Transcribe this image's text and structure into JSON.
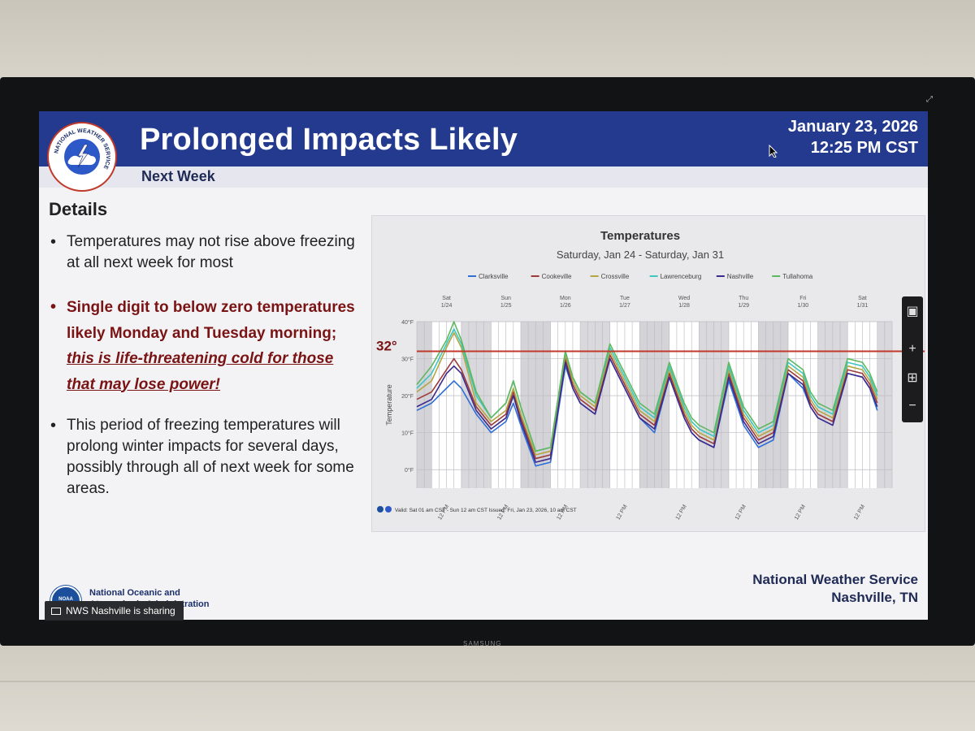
{
  "slide": {
    "title": "Prolonged Impacts Likely",
    "subtitle": "Next Week",
    "date": "January 23, 2026",
    "time": "12:25 PM CST",
    "details_heading": "Details",
    "bullet1": "Temperatures may not rise above freezing at all next week for most",
    "bullet2_main": "Single digit to below zero temperatures likely Monday and Tuesday morning; ",
    "bullet2_emph": "this is life-threatening cold for those that may lose power!",
    "bullet3": "This period of freezing temperatures will prolong winter impacts for several days, possibly through all of next week for some areas.",
    "footer_agency_line1": "National Oceanic and",
    "footer_agency_line2": "Atmospheric Administration",
    "footer_office_line1": "National Weather Service",
    "footer_office_line2": "Nashville, TN",
    "logo_label": "NATIONAL WEATHER SERVICE",
    "noaa_logo_label": "NOAA"
  },
  "screen_share": {
    "label": "NWS Nashville is sharing"
  },
  "tv": {
    "brand": "SAMSUNG"
  },
  "side_panel": {
    "zoom_in": "+",
    "zoom_out": "−",
    "fit": "⊞",
    "present": "▣"
  },
  "colors": {
    "banner": "#233a8f",
    "alert": "#7a1414",
    "freeze_line": "#c0392b"
  },
  "chart_data": {
    "type": "line",
    "title": "Temperatures",
    "subtitle": "Saturday, Jan 24 - Saturday, Jan 31",
    "ylabel": "Temperature",
    "ylim": [
      -5,
      40
    ],
    "yticks": [
      0,
      10,
      20,
      30,
      40
    ],
    "ytick_labels": [
      "0°F",
      "10°F",
      "20°F",
      "30°F",
      "40°F"
    ],
    "annotation": "32°",
    "freeze_line": 32,
    "days": [
      {
        "dow": "Sat",
        "date": "1/24"
      },
      {
        "dow": "Sun",
        "date": "1/25"
      },
      {
        "dow": "Mon",
        "date": "1/26"
      },
      {
        "dow": "Tue",
        "date": "1/27"
      },
      {
        "dow": "Wed",
        "date": "1/28"
      },
      {
        "dow": "Thu",
        "date": "1/29"
      },
      {
        "dow": "Fri",
        "date": "1/30"
      },
      {
        "dow": "Sat",
        "date": "1/31"
      }
    ],
    "xtick_label": "12 PM",
    "x_hours": [
      0,
      6,
      12,
      15,
      18,
      24,
      30,
      36,
      39,
      42,
      48,
      54,
      60,
      63,
      66,
      72,
      78,
      84,
      87,
      90,
      96,
      102,
      108,
      111,
      114,
      120,
      126,
      132,
      135,
      138,
      144,
      150,
      156,
      159,
      162,
      168,
      174,
      180,
      183,
      186
    ],
    "series": [
      {
        "name": "Clarksville",
        "color": "#2f6fd6",
        "values": [
          16,
          18,
          22,
          24,
          22,
          15,
          10,
          13,
          18,
          12,
          1,
          2,
          28,
          22,
          18,
          15,
          30,
          22,
          18,
          14,
          10,
          25,
          14,
          10,
          8,
          6,
          24,
          12,
          9,
          6,
          8,
          26,
          22,
          17,
          14,
          12,
          26,
          25,
          22,
          16
        ]
      },
      {
        "name": "Cookeville",
        "color": "#9c3a3a",
        "values": [
          19,
          21,
          27,
          30,
          27,
          17,
          12,
          15,
          21,
          14,
          3,
          4,
          30,
          23,
          19,
          16,
          31,
          23,
          19,
          15,
          12,
          26,
          15,
          11,
          9,
          7,
          26,
          14,
          11,
          8,
          10,
          27,
          24,
          18,
          15,
          13,
          27,
          26,
          23,
          18
        ]
      },
      {
        "name": "Crossville",
        "color": "#b5a642",
        "values": [
          21,
          24,
          33,
          37,
          33,
          18,
          13,
          16,
          22,
          15,
          4,
          5,
          31,
          24,
          20,
          17,
          32,
          24,
          20,
          16,
          13,
          27,
          16,
          12,
          10,
          8,
          27,
          15,
          12,
          9,
          11,
          28,
          25,
          19,
          16,
          14,
          28,
          27,
          24,
          19
        ]
      },
      {
        "name": "Lawrenceburg",
        "color": "#3fc6c0",
        "values": [
          22,
          26,
          34,
          38,
          34,
          20,
          14,
          18,
          24,
          17,
          5,
          6,
          32,
          25,
          21,
          18,
          33,
          25,
          21,
          17,
          14,
          28,
          17,
          13,
          11,
          9,
          28,
          16,
          13,
          10,
          12,
          29,
          26,
          20,
          17,
          15,
          29,
          28,
          25,
          20
        ]
      },
      {
        "name": "Nashville",
        "color": "#3d2a8c",
        "values": [
          17,
          19,
          26,
          28,
          26,
          16,
          11,
          14,
          20,
          13,
          2,
          3,
          29,
          22,
          18,
          15,
          30,
          22,
          18,
          14,
          11,
          25,
          14,
          10,
          8,
          6,
          25,
          13,
          10,
          7,
          9,
          26,
          23,
          17,
          14,
          12,
          26,
          25,
          22,
          17
        ]
      },
      {
        "name": "Tullahoma",
        "color": "#5fb85f",
        "values": [
          23,
          28,
          35,
          40,
          35,
          21,
          14,
          18,
          24,
          17,
          5,
          6,
          32,
          25,
          21,
          18,
          34,
          26,
          22,
          18,
          15,
          29,
          18,
          14,
          12,
          10,
          29,
          17,
          14,
          11,
          13,
          30,
          27,
          21,
          18,
          16,
          30,
          29,
          26,
          21
        ]
      }
    ],
    "footnote": "Valid: Sat 01 am CST - Sun 12 am CST    Issued: Fri, Jan 23, 2026, 10 am CST"
  }
}
